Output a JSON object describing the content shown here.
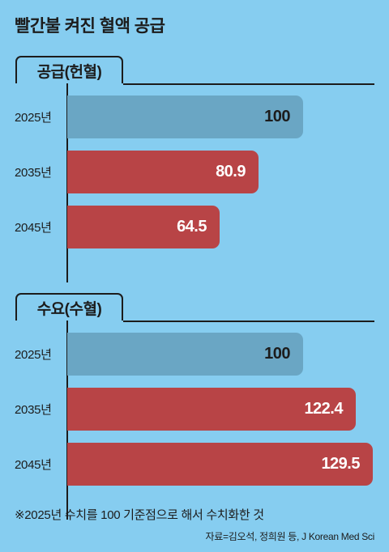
{
  "headline": "빨간불 켜진 혈액 공급",
  "colors": {
    "background": "#86cdf0",
    "base_bar": "#6aa6c4",
    "future_bar": "#b84446"
  },
  "chart_data": [
    {
      "type": "bar",
      "orientation": "horizontal",
      "title": "공급(헌혈)",
      "categories": [
        "2025년",
        "2035년",
        "2045년"
      ],
      "values": [
        100,
        80.9,
        64.5
      ],
      "value_labels": [
        "100",
        "80.9",
        "64.5"
      ],
      "xlim": [
        0,
        129.5
      ],
      "grid": false,
      "legend": "none"
    },
    {
      "type": "bar",
      "orientation": "horizontal",
      "title": "수요(수혈)",
      "categories": [
        "2025년",
        "2035년",
        "2045년"
      ],
      "values": [
        100,
        122.4,
        129.5
      ],
      "value_labels": [
        "100",
        "122.4",
        "129.5"
      ],
      "xlim": [
        0,
        129.5
      ],
      "grid": false,
      "legend": "none"
    }
  ],
  "footnote": "※2025년 수치를 100 기준점으로 해서 수치화한 것",
  "source": "자료=김오석, 정희원 등, J Korean Med Sci"
}
